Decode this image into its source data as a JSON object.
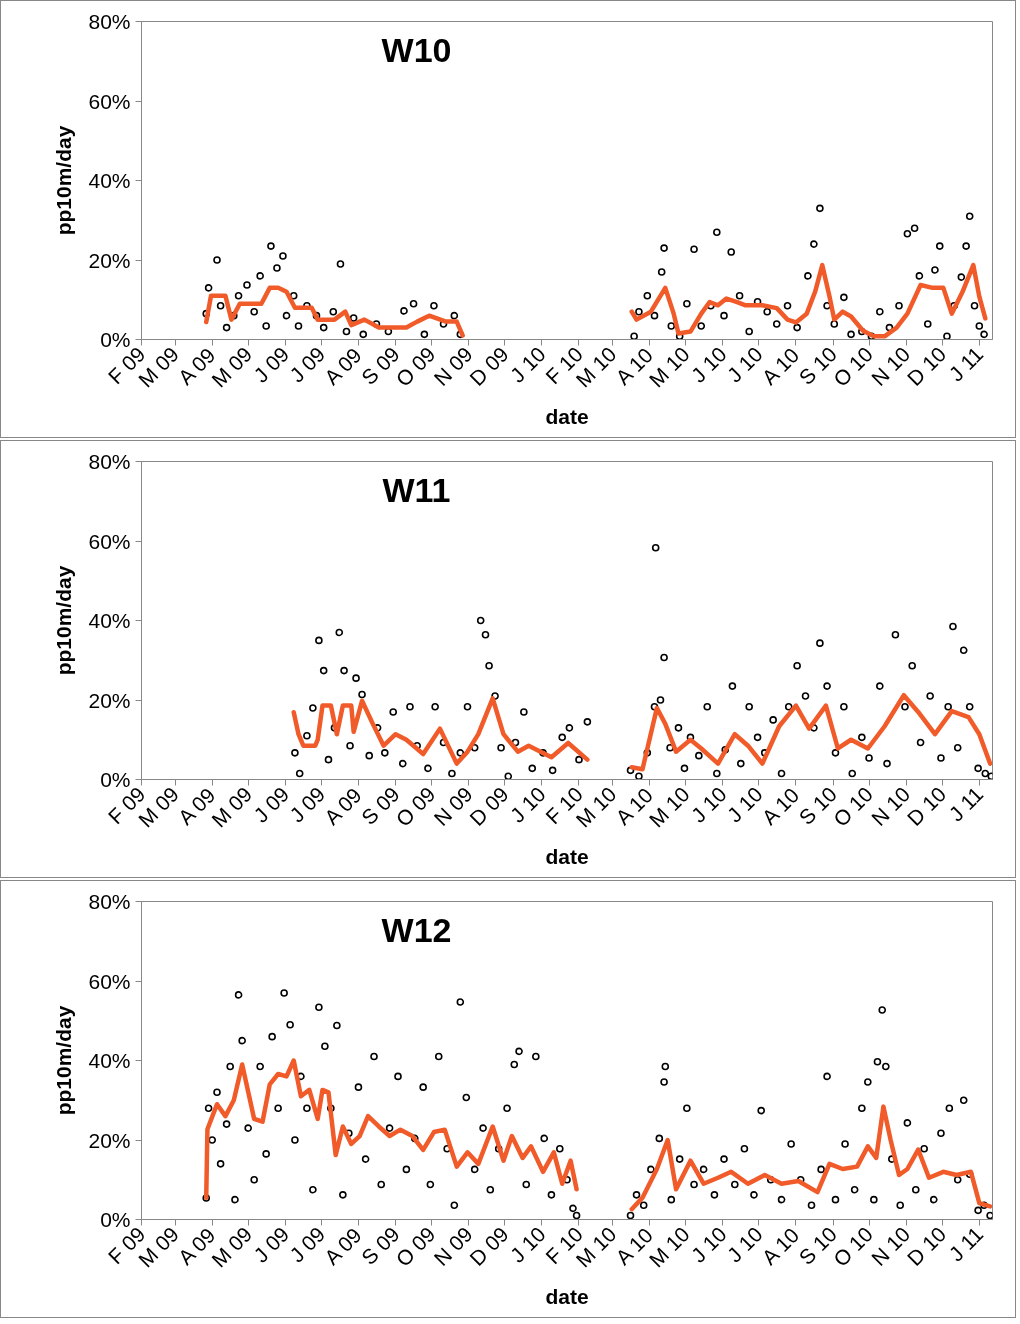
{
  "chart_data": [
    {
      "type": "scatter",
      "title": "W10",
      "xlabel": "date",
      "ylabel": "pp10m/day",
      "xlim": [
        "2009-02-01",
        "2011-01-12"
      ],
      "xticks": [
        {
          "value": "2009-02-01",
          "label": "F 09"
        },
        {
          "value": "2009-03-01",
          "label": "M 09"
        },
        {
          "value": "2009-04-01",
          "label": "A 09"
        },
        {
          "value": "2009-05-01",
          "label": "M 09"
        },
        {
          "value": "2009-06-01",
          "label": "J 09"
        },
        {
          "value": "2009-07-01",
          "label": "J 09"
        },
        {
          "value": "2009-08-01",
          "label": "A 09"
        },
        {
          "value": "2009-09-01",
          "label": "S 09"
        },
        {
          "value": "2009-10-01",
          "label": "O 09"
        },
        {
          "value": "2009-11-01",
          "label": "N 09"
        },
        {
          "value": "2009-12-01",
          "label": "D 09"
        },
        {
          "value": "2010-01-01",
          "label": "J 10"
        },
        {
          "value": "2010-02-01",
          "label": "F 10"
        },
        {
          "value": "2010-03-01",
          "label": "M 10"
        },
        {
          "value": "2010-04-01",
          "label": "A 10"
        },
        {
          "value": "2010-05-01",
          "label": "M 10"
        },
        {
          "value": "2010-06-01",
          "label": "J 10"
        },
        {
          "value": "2010-07-01",
          "label": "J 10"
        },
        {
          "value": "2010-08-01",
          "label": "A 10"
        },
        {
          "value": "2010-09-01",
          "label": "S 10"
        },
        {
          "value": "2010-10-01",
          "label": "O 10"
        },
        {
          "value": "2010-11-01",
          "label": "N 10"
        },
        {
          "value": "2010-12-01",
          "label": "D 10"
        },
        {
          "value": "2011-01-01",
          "label": "J 11"
        }
      ],
      "ylim": [
        0,
        80
      ],
      "yticks": [
        {
          "value": 0,
          "label": "0%"
        },
        {
          "value": 20,
          "label": "20%"
        },
        {
          "value": 40,
          "label": "40%"
        },
        {
          "value": 60,
          "label": "60%"
        },
        {
          "value": 80,
          "label": "80%"
        }
      ],
      "grid": false,
      "series": [
        {
          "marker": "circle",
          "color": "#000000",
          "x": [
            "2009-03-27",
            "2009-03-29",
            "2009-04-05",
            "2009-04-08",
            "2009-04-13",
            "2009-04-19",
            "2009-04-23",
            "2009-04-30",
            "2009-05-06",
            "2009-05-11",
            "2009-05-16",
            "2009-05-20",
            "2009-05-25",
            "2009-05-30",
            "2009-06-02",
            "2009-06-08",
            "2009-06-12",
            "2009-06-19",
            "2009-06-27",
            "2009-07-03",
            "2009-07-11",
            "2009-07-17",
            "2009-07-22",
            "2009-07-28",
            "2009-08-05",
            "2009-08-16",
            "2009-08-26",
            "2009-09-08",
            "2009-09-16",
            "2009-09-25",
            "2009-10-03",
            "2009-10-11",
            "2009-10-20",
            "2009-10-25",
            "2010-03-19",
            "2010-03-23",
            "2010-03-30",
            "2010-04-05",
            "2010-04-11",
            "2010-04-13",
            "2010-04-19",
            "2010-04-26",
            "2010-05-02",
            "2010-05-08",
            "2010-05-14",
            "2010-05-22",
            "2010-05-27",
            "2010-06-02",
            "2010-06-08",
            "2010-06-15",
            "2010-06-23",
            "2010-06-30",
            "2010-07-08",
            "2010-07-16",
            "2010-07-25",
            "2010-08-02",
            "2010-08-11",
            "2010-08-16",
            "2010-08-21",
            "2010-08-27",
            "2010-09-02",
            "2010-09-10",
            "2010-09-16",
            "2010-09-25",
            "2010-10-03",
            "2010-10-10",
            "2010-10-18",
            "2010-10-26",
            "2010-11-02",
            "2010-11-08",
            "2010-11-12",
            "2010-11-19",
            "2010-11-25",
            "2010-11-29",
            "2010-12-05",
            "2010-12-11",
            "2010-12-17",
            "2010-12-21",
            "2010-12-24",
            "2010-12-28",
            "2011-01-01",
            "2011-01-05"
          ],
          "values": [
            6.5,
            13,
            20,
            8.5,
            3,
            6,
            11,
            13.7,
            7,
            16,
            3.4,
            23.5,
            18,
            21,
            6,
            11,
            3.4,
            8.5,
            6,
            3,
            7,
            19,
            2,
            5.4,
            1.3,
            3.9,
            2,
            7.2,
            9,
            1.3,
            8.5,
            3.9,
            6,
            1.3,
            0.8,
            7,
            11,
            6,
            17,
            23,
            3.4,
            0.8,
            9,
            22.7,
            3.4,
            8.5,
            27,
            6,
            22,
            11,
            2,
            9.5,
            7,
            3.9,
            8.5,
            3,
            16,
            24,
            33,
            8.5,
            3.9,
            10.6,
            1.3,
            2,
            0.8,
            7,
            3,
            8.5,
            26.6,
            28,
            16,
            3.9,
            17.5,
            23.5,
            0.8,
            8.5,
            15.7,
            23.5,
            31,
            8.5,
            3.4,
            1.3
          ]
        },
        {
          "type": "line",
          "color": "#f15a29",
          "x": [
            "2009-03-27",
            "2009-03-31",
            "2009-04-12",
            "2009-04-17",
            "2009-04-24",
            "2009-05-12",
            "2009-05-19",
            "2009-05-26",
            "2009-06-02",
            "2009-06-09",
            "2009-06-23",
            "2009-06-28",
            "2009-07-12",
            "2009-07-21",
            "2009-07-26",
            "2009-08-06",
            "2009-08-18",
            "2009-09-10",
            "2009-09-19",
            "2009-09-29",
            "2009-10-13",
            "2009-10-22",
            "2009-10-27",
            "2010-01-01",
            "2010-03-17",
            "2010-03-21",
            "2010-04-02",
            "2010-04-14",
            "2010-04-21",
            "2010-04-25",
            "2010-05-05",
            "2010-05-14",
            "2010-05-21",
            "2010-05-28",
            "2010-06-04",
            "2010-06-13",
            "2010-06-20",
            "2010-07-04",
            "2010-07-16",
            "2010-07-25",
            "2010-08-01",
            "2010-08-10",
            "2010-08-17",
            "2010-08-23",
            "2010-08-29",
            "2010-09-02",
            "2010-09-09",
            "2010-09-16",
            "2010-09-26",
            "2010-10-05",
            "2010-10-14",
            "2010-10-24",
            "2010-11-02",
            "2010-11-13",
            "2010-11-23",
            "2010-12-02",
            "2010-12-09",
            "2010-12-18",
            "2010-12-27",
            "2011-01-01",
            "2011-01-06"
          ],
          "values": [
            4.4,
            11,
            11,
            5,
            9,
            9,
            13,
            13,
            12,
            8,
            8,
            5,
            5,
            7,
            3.6,
            5,
            3,
            3,
            4.5,
            6,
            4.5,
            4.5,
            1,
            null,
            7,
            5,
            7,
            13,
            6.5,
            1.5,
            2,
            6.5,
            9.4,
            8.6,
            10.3,
            9.4,
            8.6,
            8.6,
            7.9,
            5,
            4.3,
            6.5,
            12,
            18.7,
            10.8,
            5,
            7,
            5.8,
            2.2,
            0.8,
            0.8,
            3,
            6.5,
            13.7,
            13,
            13,
            6.5,
            12,
            18.7,
            10.8,
            5.3
          ]
        }
      ]
    },
    {
      "type": "scatter",
      "title": "W11",
      "xlabel": "date",
      "ylabel": "pp10m/day",
      "xlim": [
        "2009-02-01",
        "2011-01-12"
      ],
      "xticks": [
        {
          "value": "2009-02-01",
          "label": "F 09"
        },
        {
          "value": "2009-03-01",
          "label": "M 09"
        },
        {
          "value": "2009-04-01",
          "label": "A 09"
        },
        {
          "value": "2009-05-01",
          "label": "M 09"
        },
        {
          "value": "2009-06-01",
          "label": "J 09"
        },
        {
          "value": "2009-07-01",
          "label": "J 09"
        },
        {
          "value": "2009-08-01",
          "label": "A 09"
        },
        {
          "value": "2009-09-01",
          "label": "S 09"
        },
        {
          "value": "2009-10-01",
          "label": "O 09"
        },
        {
          "value": "2009-11-01",
          "label": "N 09"
        },
        {
          "value": "2009-12-01",
          "label": "D 09"
        },
        {
          "value": "2010-01-01",
          "label": "J 10"
        },
        {
          "value": "2010-02-01",
          "label": "F 10"
        },
        {
          "value": "2010-03-01",
          "label": "M 10"
        },
        {
          "value": "2010-04-01",
          "label": "A 10"
        },
        {
          "value": "2010-05-01",
          "label": "M 10"
        },
        {
          "value": "2010-06-01",
          "label": "J 10"
        },
        {
          "value": "2010-07-01",
          "label": "J 10"
        },
        {
          "value": "2010-08-01",
          "label": "A 10"
        },
        {
          "value": "2010-09-01",
          "label": "S 10"
        },
        {
          "value": "2010-10-01",
          "label": "O 10"
        },
        {
          "value": "2010-11-01",
          "label": "N 10"
        },
        {
          "value": "2010-12-01",
          "label": "D 10"
        },
        {
          "value": "2011-01-01",
          "label": "J 11"
        }
      ],
      "ylim": [
        0,
        80
      ],
      "yticks": [
        {
          "value": 0,
          "label": "0%"
        },
        {
          "value": 20,
          "label": "20%"
        },
        {
          "value": 40,
          "label": "40%"
        },
        {
          "value": 60,
          "label": "60%"
        },
        {
          "value": 80,
          "label": "80%"
        }
      ],
      "grid": false,
      "series": [
        {
          "marker": "circle",
          "color": "#000000",
          "x": [
            "2009-06-09",
            "2009-06-13",
            "2009-06-19",
            "2009-06-24",
            "2009-06-29",
            "2009-07-03",
            "2009-07-07",
            "2009-07-12",
            "2009-07-16",
            "2009-07-20",
            "2009-07-25",
            "2009-07-30",
            "2009-08-04",
            "2009-08-10",
            "2009-08-17",
            "2009-08-23",
            "2009-08-30",
            "2009-09-07",
            "2009-09-13",
            "2009-09-19",
            "2009-09-28",
            "2009-10-04",
            "2009-10-11",
            "2009-10-18",
            "2009-10-25",
            "2009-10-31",
            "2009-11-06",
            "2009-11-11",
            "2009-11-15",
            "2009-11-18",
            "2009-11-23",
            "2009-11-28",
            "2009-12-04",
            "2009-12-10",
            "2009-12-17",
            "2009-12-24",
            "2010-01-02",
            "2010-01-10",
            "2010-01-18",
            "2010-01-24",
            "2010-02-01",
            "2010-02-08",
            "2010-03-16",
            "2010-03-23",
            "2010-03-30",
            "2010-04-05",
            "2010-04-06",
            "2010-04-10",
            "2010-04-13",
            "2010-04-18",
            "2010-04-25",
            "2010-04-30",
            "2010-05-05",
            "2010-05-12",
            "2010-05-19",
            "2010-05-27",
            "2010-06-03",
            "2010-06-09",
            "2010-06-16",
            "2010-06-23",
            "2010-06-30",
            "2010-07-06",
            "2010-07-13",
            "2010-07-20",
            "2010-07-26",
            "2010-08-02",
            "2010-08-09",
            "2010-08-16",
            "2010-08-21",
            "2010-08-27",
            "2010-09-03",
            "2010-09-10",
            "2010-09-17",
            "2010-09-25",
            "2010-10-01",
            "2010-10-10",
            "2010-10-16",
            "2010-10-23",
            "2010-10-31",
            "2010-11-06",
            "2010-11-13",
            "2010-11-21",
            "2010-11-30",
            "2010-12-06",
            "2010-12-10",
            "2010-12-14",
            "2010-12-19",
            "2010-12-24",
            "2010-12-31",
            "2011-01-06",
            "2011-01-11"
          ],
          "values": [
            6.7,
            1.5,
            11,
            18,
            35,
            27.4,
            5,
            13,
            37,
            27.4,
            8.5,
            25.5,
            21.4,
            6,
            13,
            6.7,
            17,
            4,
            18.3,
            8.5,
            2.8,
            18.3,
            9.3,
            1.5,
            6.7,
            18.3,
            8,
            40,
            36.4,
            28.6,
            21,
            8,
            0.8,
            9.3,
            17,
            2.8,
            6.7,
            2.3,
            10.6,
            13,
            5,
            14.5,
            2.3,
            0.8,
            6.7,
            18.3,
            58.3,
            20,
            30.7,
            8,
            13,
            2.8,
            10.6,
            6,
            18.3,
            1.5,
            7.5,
            23.5,
            4,
            18.3,
            10.6,
            6.7,
            15,
            1.5,
            18.3,
            28.6,
            21,
            13,
            34.3,
            23.5,
            6.7,
            18.3,
            1.5,
            10.6,
            5.4,
            23.5,
            4,
            36.4,
            18.3,
            28.6,
            9.3,
            21,
            5.4,
            18.3,
            38.5,
            8,
            32.5,
            18.3,
            2.8,
            1.5,
            0.8
          ]
        },
        {
          "type": "line",
          "color": "#f15a29",
          "x": [
            "2009-06-08",
            "2009-06-12",
            "2009-06-16",
            "2009-06-26",
            "2009-06-28",
            "2009-07-02",
            "2009-07-09",
            "2009-07-14",
            "2009-07-19",
            "2009-07-26",
            "2009-07-28",
            "2009-08-04",
            "2009-08-13",
            "2009-08-22",
            "2009-09-01",
            "2009-09-10",
            "2009-09-24",
            "2009-10-08",
            "2009-10-22",
            "2009-10-31",
            "2009-11-09",
            "2009-11-21",
            "2009-11-30",
            "2009-12-12",
            "2009-12-21",
            "2010-01-09",
            "2010-01-23",
            "2010-02-08",
            "2010-03-01",
            "2010-03-17",
            "2010-03-26",
            "2010-04-07",
            "2010-04-14",
            "2010-04-23",
            "2010-05-05",
            "2010-05-14",
            "2010-05-28",
            "2010-06-11",
            "2010-06-22",
            "2010-07-04",
            "2010-07-18",
            "2010-08-01",
            "2010-08-12",
            "2010-08-26",
            "2010-09-05",
            "2010-09-16",
            "2010-09-30",
            "2010-10-14",
            "2010-10-30",
            "2010-11-11",
            "2010-11-25",
            "2010-12-09",
            "2010-12-23",
            "2011-01-01",
            "2011-01-10"
          ],
          "values": [
            16.9,
            11.4,
            8.5,
            8.5,
            10,
            18.6,
            18.6,
            11.4,
            18.6,
            18.6,
            12,
            19.8,
            14,
            8.5,
            11.4,
            10,
            6.4,
            12.8,
            4,
            7,
            11.4,
            20.4,
            11.4,
            7,
            8.5,
            5.6,
            9.2,
            5,
            null,
            3.1,
            2.6,
            18,
            14,
            7,
            10,
            7.8,
            4,
            11.4,
            8.5,
            4,
            13.4,
            18.6,
            12.8,
            18.6,
            7.8,
            10,
            7.8,
            13.4,
            21.2,
            17,
            11.4,
            17.2,
            15.7,
            11.4,
            4
          ]
        }
      ]
    },
    {
      "type": "scatter",
      "title": "W12",
      "xlabel": "date",
      "ylabel": "pp10m/day",
      "xlim": [
        "2009-02-01",
        "2011-01-12"
      ],
      "xticks": [
        {
          "value": "2009-02-01",
          "label": "F 09"
        },
        {
          "value": "2009-03-01",
          "label": "M 09"
        },
        {
          "value": "2009-04-01",
          "label": "A 09"
        },
        {
          "value": "2009-05-01",
          "label": "M 09"
        },
        {
          "value": "2009-06-01",
          "label": "J 09"
        },
        {
          "value": "2009-07-01",
          "label": "J 09"
        },
        {
          "value": "2009-08-01",
          "label": "A 09"
        },
        {
          "value": "2009-09-01",
          "label": "S 09"
        },
        {
          "value": "2009-10-01",
          "label": "O 09"
        },
        {
          "value": "2009-11-01",
          "label": "N 09"
        },
        {
          "value": "2009-12-01",
          "label": "D 09"
        },
        {
          "value": "2010-01-01",
          "label": "J 10"
        },
        {
          "value": "2010-02-01",
          "label": "F 10"
        },
        {
          "value": "2010-03-01",
          "label": "M 10"
        },
        {
          "value": "2010-04-01",
          "label": "A 10"
        },
        {
          "value": "2010-05-01",
          "label": "M 10"
        },
        {
          "value": "2010-06-01",
          "label": "J 10"
        },
        {
          "value": "2010-07-01",
          "label": "J 10"
        },
        {
          "value": "2010-08-01",
          "label": "A 10"
        },
        {
          "value": "2010-09-01",
          "label": "S 10"
        },
        {
          "value": "2010-10-01",
          "label": "O 10"
        },
        {
          "value": "2010-11-01",
          "label": "N 10"
        },
        {
          "value": "2010-12-01",
          "label": "D 10"
        },
        {
          "value": "2011-01-01",
          "label": "J 11"
        }
      ],
      "ylim": [
        0,
        80
      ],
      "yticks": [
        {
          "value": 0,
          "label": "0%"
        },
        {
          "value": 20,
          "label": "20%"
        },
        {
          "value": 40,
          "label": "40%"
        },
        {
          "value": 60,
          "label": "60%"
        },
        {
          "value": 80,
          "label": "80%"
        }
      ],
      "grid": false,
      "series": [
        {
          "marker": "circle",
          "color": "#000000",
          "x": [
            "2009-03-27",
            "2009-03-29",
            "2009-04-01",
            "2009-04-05",
            "2009-04-08",
            "2009-04-13",
            "2009-04-16",
            "2009-04-20",
            "2009-04-23",
            "2009-04-26",
            "2009-05-01",
            "2009-05-06",
            "2009-05-11",
            "2009-05-16",
            "2009-05-21",
            "2009-05-26",
            "2009-05-31",
            "2009-06-05",
            "2009-06-09",
            "2009-06-14",
            "2009-06-19",
            "2009-06-24",
            "2009-06-29",
            "2009-07-04",
            "2009-07-09",
            "2009-07-14",
            "2009-07-19",
            "2009-07-24",
            "2009-08-01",
            "2009-08-07",
            "2009-08-14",
            "2009-08-20",
            "2009-08-27",
            "2009-09-03",
            "2009-09-10",
            "2009-09-17",
            "2009-09-24",
            "2009-09-30",
            "2009-10-07",
            "2009-10-14",
            "2009-10-20",
            "2009-10-25",
            "2009-10-30",
            "2009-11-06",
            "2009-11-13",
            "2009-11-19",
            "2009-11-26",
            "2009-12-03",
            "2009-12-09",
            "2009-12-13",
            "2009-12-19",
            "2009-12-27",
            "2010-01-03",
            "2010-01-09",
            "2010-01-16",
            "2010-01-22",
            "2010-01-27",
            "2010-01-30",
            "2010-03-16",
            "2010-03-21",
            "2010-03-27",
            "2010-04-02",
            "2010-04-09",
            "2010-04-13",
            "2010-04-14",
            "2010-04-19",
            "2010-04-26",
            "2010-05-02",
            "2010-05-08",
            "2010-05-16",
            "2010-05-25",
            "2010-06-02",
            "2010-06-11",
            "2010-06-19",
            "2010-06-27",
            "2010-07-03",
            "2010-07-11",
            "2010-07-20",
            "2010-07-28",
            "2010-08-05",
            "2010-08-14",
            "2010-08-22",
            "2010-08-27",
            "2010-09-03",
            "2010-09-11",
            "2010-09-19",
            "2010-09-25",
            "2010-09-30",
            "2010-10-05",
            "2010-10-08",
            "2010-10-12",
            "2010-10-15",
            "2010-10-20",
            "2010-10-27",
            "2010-11-02",
            "2010-11-09",
            "2010-11-16",
            "2010-11-24",
            "2010-11-30",
            "2010-12-07",
            "2010-12-14",
            "2010-12-19",
            "2010-12-24",
            "2010-12-31",
            "2011-01-05",
            "2011-01-10"
          ],
          "values": [
            5.4,
            28,
            20,
            32,
            14,
            24,
            38.5,
            5,
            56.5,
            45,
            23,
            10,
            38.5,
            16.5,
            46,
            28,
            57,
            49,
            20,
            36,
            28,
            7.5,
            53.4,
            43.6,
            28,
            48.8,
            6.2,
            21.7,
            33.3,
            15.2,
            41,
            8.8,
            23,
            36,
            12.6,
            20.4,
            33.3,
            8.8,
            41,
            17.8,
            3.6,
            54.7,
            30.7,
            12.6,
            23,
            7.5,
            17.8,
            28,
            39,
            42.3,
            8.8,
            41,
            20.4,
            6.2,
            17.8,
            10,
            2.8,
            1,
            1,
            6.2,
            3.6,
            12.6,
            20.4,
            34.6,
            38.5,
            5,
            15.2,
            28,
            8.8,
            12.6,
            6.2,
            15.2,
            8.8,
            17.8,
            6.2,
            27.4,
            10,
            5,
            19,
            10,
            3.6,
            12.6,
            36,
            5,
            19,
            7.5,
            28,
            34.6,
            5,
            39.7,
            52.7,
            38.5,
            15.2,
            3.6,
            24.3,
            7.5,
            17.8,
            5,
            21.7,
            28,
            10,
            30,
            11.4,
            2.3,
            3.6,
            1
          ]
        },
        {
          "type": "line",
          "color": "#f15a29",
          "x": [
            "2009-03-27",
            "2009-03-28",
            "2009-04-05",
            "2009-04-12",
            "2009-04-19",
            "2009-04-26",
            "2009-05-06",
            "2009-05-13",
            "2009-05-19",
            "2009-05-26",
            "2009-06-02",
            "2009-06-08",
            "2009-06-14",
            "2009-06-21",
            "2009-06-28",
            "2009-07-02",
            "2009-07-07",
            "2009-07-13",
            "2009-07-19",
            "2009-07-26",
            "2009-08-02",
            "2009-08-09",
            "2009-08-18",
            "2009-08-27",
            "2009-09-05",
            "2009-09-15",
            "2009-09-24",
            "2009-10-03",
            "2009-10-12",
            "2009-10-22",
            "2009-10-31",
            "2009-11-09",
            "2009-11-21",
            "2009-11-30",
            "2009-12-07",
            "2009-12-16",
            "2009-12-23",
            "2010-01-02",
            "2010-01-11",
            "2010-01-18",
            "2010-01-25",
            "2010-01-30",
            "2010-02-20",
            "2010-03-17",
            "2010-03-26",
            "2010-04-07",
            "2010-04-16",
            "2010-04-23",
            "2010-05-05",
            "2010-05-16",
            "2010-05-28",
            "2010-06-08",
            "2010-06-22",
            "2010-07-06",
            "2010-07-20",
            "2010-08-03",
            "2010-08-19",
            "2010-08-29",
            "2010-09-09",
            "2010-09-21",
            "2010-09-30",
            "2010-10-07",
            "2010-10-13",
            "2010-10-19",
            "2010-10-26",
            "2010-11-02",
            "2010-11-11",
            "2010-11-20",
            "2010-12-02",
            "2010-12-13",
            "2010-12-25",
            "2011-01-01",
            "2011-01-10"
          ],
          "values": [
            5.5,
            22.7,
            29,
            26,
            30,
            39,
            25.3,
            24.6,
            34,
            36.6,
            36,
            40,
            31,
            32.6,
            25.3,
            32.6,
            32,
            16.2,
            23.4,
            19,
            21,
            26,
            23.4,
            21,
            22.6,
            21,
            17.5,
            22,
            22.6,
            13.3,
            16.9,
            14,
            23.4,
            14.8,
            21,
            15.5,
            18.4,
            12,
            16.9,
            9,
            14.8,
            7.6,
            null,
            2.6,
            5.5,
            12.7,
            20,
            7.6,
            14.8,
            9,
            10.5,
            12,
            9,
            11.2,
            9,
            9.7,
            6.9,
            14,
            12.7,
            13.3,
            18.4,
            15.5,
            28.4,
            20,
            11.2,
            12.7,
            17.6,
            10.5,
            12,
            11.2,
            12,
            4.1,
            3.3
          ]
        }
      ]
    }
  ]
}
